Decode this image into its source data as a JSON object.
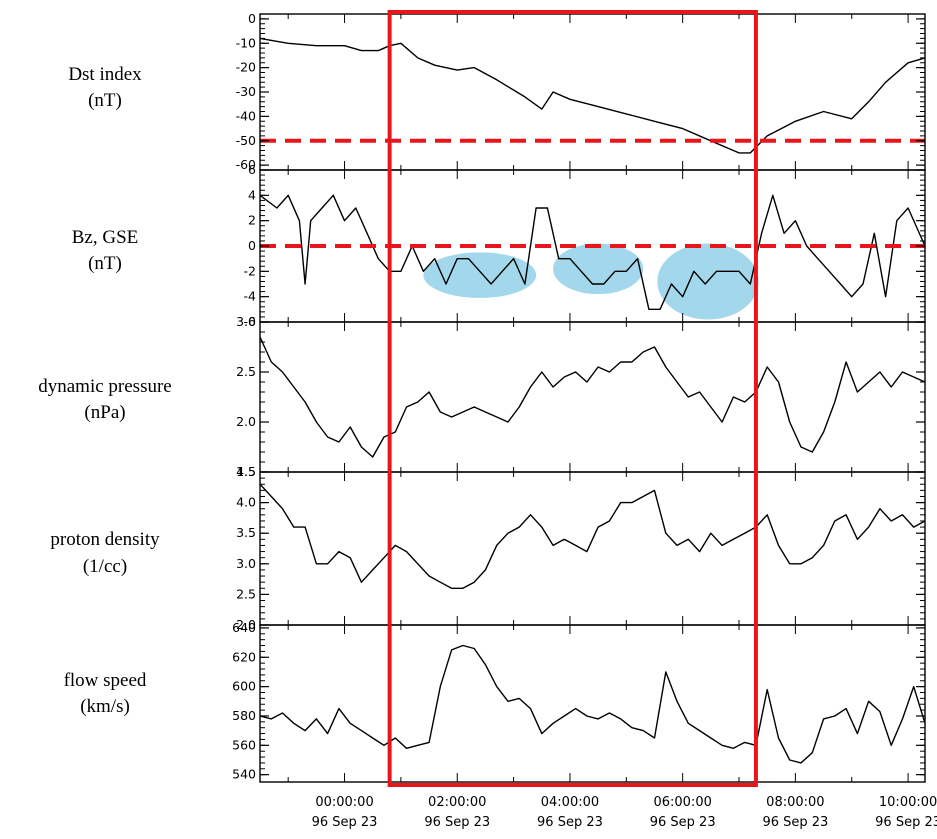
{
  "chart_data": {
    "type": "line",
    "x_ticks": [
      {
        "time": "00:00:00",
        "date": "96 Sep 23"
      },
      {
        "time": "02:00:00",
        "date": "96 Sep 23"
      },
      {
        "time": "04:00:00",
        "date": "96 Sep 23"
      },
      {
        "time": "06:00:00",
        "date": "96 Sep 23"
      },
      {
        "time": "08:00:00",
        "date": "96 Sep 23"
      },
      {
        "time": "10:00:00",
        "date": "96 Sep 23"
      }
    ],
    "xlim_hours": [
      -1.5,
      10.3
    ],
    "highlight_window_hours": [
      0.8,
      7.3
    ],
    "highlight_color": "#e8151b",
    "line_color": "#000000",
    "panels": [
      {
        "id": "dst",
        "label_line1": "Dst index",
        "label_line2": "(nT)",
        "ylim": [
          -62,
          2
        ],
        "ticks": [
          0,
          -10,
          -20,
          -30,
          -40,
          -50,
          -60
        ],
        "tick_labels": [
          "0",
          "-10",
          "-20",
          "-30",
          "-40",
          "-50",
          "-60"
        ],
        "threshold": -50,
        "series": {
          "x": [
            -1.5,
            -1.0,
            -0.5,
            0.0,
            0.3,
            0.6,
            0.8,
            1.0,
            1.3,
            1.6,
            2.0,
            2.3,
            2.7,
            3.2,
            3.5,
            3.7,
            4.0,
            4.5,
            5.0,
            5.5,
            6.0,
            6.5,
            6.8,
            7.0,
            7.2,
            7.5,
            8.0,
            8.5,
            9.0,
            9.3,
            9.6,
            10.0,
            10.3
          ],
          "y": [
            -8,
            -10,
            -11,
            -11,
            -13,
            -13,
            -11,
            -10,
            -16,
            -19,
            -21,
            -20,
            -25,
            -32,
            -37,
            -30,
            -33,
            -36,
            -39,
            -42,
            -45,
            -50,
            -53,
            -55,
            -55,
            -48,
            -42,
            -38,
            -41,
            -34,
            -26,
            -18,
            -16
          ]
        }
      },
      {
        "id": "bz",
        "label_line1": "Bz, GSE",
        "label_line2": "(nT)",
        "ylim": [
          -6,
          6
        ],
        "ticks": [
          6,
          4,
          2,
          0,
          -2,
          -4,
          -6
        ],
        "tick_labels": [
          "6",
          "4",
          "2",
          "0",
          "-2",
          "-4",
          "-6"
        ],
        "threshold": 0,
        "highlight_ellipses": [
          {
            "x_hours": 2.4,
            "y": -2.3,
            "rx_hours": 1.0,
            "ry": 1.8
          },
          {
            "x_hours": 4.5,
            "y": -1.8,
            "rx_hours": 0.8,
            "ry": 2.0
          },
          {
            "x_hours": 6.45,
            "y": -2.8,
            "rx_hours": 0.9,
            "ry": 3.0
          }
        ],
        "ellipse_color": "#a3d8ec",
        "series": {
          "x": [
            -1.5,
            -1.2,
            -1.0,
            -0.8,
            -0.7,
            -0.6,
            -0.4,
            -0.2,
            0.0,
            0.2,
            0.4,
            0.6,
            0.8,
            1.0,
            1.2,
            1.4,
            1.6,
            1.8,
            2.0,
            2.2,
            2.4,
            2.6,
            2.8,
            3.0,
            3.2,
            3.4,
            3.6,
            3.8,
            4.0,
            4.2,
            4.4,
            4.6,
            4.8,
            5.0,
            5.2,
            5.4,
            5.6,
            5.8,
            6.0,
            6.2,
            6.4,
            6.6,
            6.8,
            7.0,
            7.2,
            7.4,
            7.6,
            7.8,
            8.0,
            8.2,
            8.4,
            8.6,
            8.8,
            9.0,
            9.2,
            9.4,
            9.6,
            9.8,
            10.0,
            10.3
          ],
          "y": [
            4,
            3,
            4,
            2,
            -3,
            2,
            3,
            4,
            2,
            3,
            1,
            -1,
            -2,
            -2,
            0,
            -2,
            -1,
            -3,
            -1,
            -1,
            -2,
            -3,
            -2,
            -1,
            -3,
            3,
            3,
            -1,
            -1,
            -2,
            -3,
            -3,
            -2,
            -2,
            -1,
            -5,
            -5,
            -3,
            -4,
            -2,
            -3,
            -2,
            -2,
            -2,
            -3,
            1,
            4,
            1,
            2,
            0,
            -1,
            -2,
            -3,
            -4,
            -3,
            1,
            -4,
            2,
            3,
            0
          ]
        }
      },
      {
        "id": "pdyn",
        "label_line1": "dynamic pressure",
        "label_line2": "(nPa)",
        "ylim": [
          1.5,
          3.0
        ],
        "ticks": [
          3.0,
          2.5,
          2.0,
          1.5
        ],
        "tick_labels": [
          "3.0",
          "2.5",
          "2.0",
          "1.5"
        ],
        "series": {
          "x": [
            -1.5,
            -1.3,
            -1.1,
            -0.9,
            -0.7,
            -0.5,
            -0.3,
            -0.1,
            0.1,
            0.3,
            0.5,
            0.7,
            0.9,
            1.1,
            1.3,
            1.5,
            1.7,
            1.9,
            2.1,
            2.3,
            2.5,
            2.7,
            2.9,
            3.1,
            3.3,
            3.5,
            3.7,
            3.9,
            4.1,
            4.3,
            4.5,
            4.7,
            4.9,
            5.1,
            5.3,
            5.5,
            5.7,
            5.9,
            6.1,
            6.3,
            6.5,
            6.7,
            6.9,
            7.1,
            7.3,
            7.5,
            7.7,
            7.9,
            8.1,
            8.3,
            8.5,
            8.7,
            8.9,
            9.1,
            9.3,
            9.5,
            9.7,
            9.9,
            10.1,
            10.3
          ],
          "y": [
            2.85,
            2.6,
            2.5,
            2.35,
            2.2,
            2.0,
            1.85,
            1.8,
            1.95,
            1.75,
            1.65,
            1.85,
            1.9,
            2.15,
            2.2,
            2.3,
            2.1,
            2.05,
            2.1,
            2.15,
            2.1,
            2.05,
            2.0,
            2.15,
            2.35,
            2.5,
            2.35,
            2.45,
            2.5,
            2.4,
            2.55,
            2.5,
            2.6,
            2.6,
            2.7,
            2.75,
            2.55,
            2.4,
            2.25,
            2.3,
            2.15,
            2.0,
            2.25,
            2.2,
            2.3,
            2.55,
            2.4,
            2.0,
            1.75,
            1.7,
            1.9,
            2.2,
            2.6,
            2.3,
            2.4,
            2.5,
            2.35,
            2.5,
            2.45,
            2.4
          ]
        }
      },
      {
        "id": "density",
        "label_line1": "proton density",
        "label_line2": "(1/cc)",
        "ylim": [
          2.0,
          4.5
        ],
        "ticks": [
          4.5,
          4.0,
          3.5,
          3.0,
          2.5,
          2.0
        ],
        "tick_labels": [
          "4.5",
          "4.0",
          "3.5",
          "3.0",
          "2.5",
          "2.0"
        ],
        "series": {
          "x": [
            -1.5,
            -1.3,
            -1.1,
            -0.9,
            -0.7,
            -0.5,
            -0.3,
            -0.1,
            0.1,
            0.3,
            0.5,
            0.7,
            0.9,
            1.1,
            1.3,
            1.5,
            1.7,
            1.9,
            2.1,
            2.3,
            2.5,
            2.7,
            2.9,
            3.1,
            3.3,
            3.5,
            3.7,
            3.9,
            4.1,
            4.3,
            4.5,
            4.7,
            4.9,
            5.1,
            5.3,
            5.5,
            5.7,
            5.9,
            6.1,
            6.3,
            6.5,
            6.7,
            6.9,
            7.1,
            7.3,
            7.5,
            7.7,
            7.9,
            8.1,
            8.3,
            8.5,
            8.7,
            8.9,
            9.1,
            9.3,
            9.5,
            9.7,
            9.9,
            10.1,
            10.3
          ],
          "y": [
            4.3,
            4.1,
            3.9,
            3.6,
            3.6,
            3.0,
            3.0,
            3.2,
            3.1,
            2.7,
            2.9,
            3.1,
            3.3,
            3.2,
            3.0,
            2.8,
            2.7,
            2.6,
            2.6,
            2.7,
            2.9,
            3.3,
            3.5,
            3.6,
            3.8,
            3.6,
            3.3,
            3.4,
            3.3,
            3.2,
            3.6,
            3.7,
            4.0,
            4.0,
            4.1,
            4.2,
            3.5,
            3.3,
            3.4,
            3.2,
            3.5,
            3.3,
            3.4,
            3.5,
            3.6,
            3.8,
            3.3,
            3.0,
            3.0,
            3.1,
            3.3,
            3.7,
            3.8,
            3.4,
            3.6,
            3.9,
            3.7,
            3.8,
            3.6,
            3.7
          ]
        }
      },
      {
        "id": "speed",
        "label_line1": "flow speed",
        "label_line2": "(km/s)",
        "ylim": [
          535,
          642
        ],
        "ticks": [
          640,
          620,
          600,
          580,
          560,
          540
        ],
        "tick_labels": [
          "640",
          "620",
          "600",
          "580",
          "560",
          "540"
        ],
        "series": {
          "x": [
            -1.5,
            -1.3,
            -1.1,
            -0.9,
            -0.7,
            -0.5,
            -0.3,
            -0.1,
            0.1,
            0.3,
            0.5,
            0.7,
            0.9,
            1.1,
            1.3,
            1.5,
            1.7,
            1.9,
            2.1,
            2.3,
            2.5,
            2.7,
            2.9,
            3.1,
            3.3,
            3.5,
            3.7,
            3.9,
            4.1,
            4.3,
            4.5,
            4.7,
            4.9,
            5.1,
            5.3,
            5.5,
            5.7,
            5.9,
            6.1,
            6.3,
            6.5,
            6.7,
            6.9,
            7.1,
            7.3,
            7.5,
            7.7,
            7.9,
            8.1,
            8.3,
            8.5,
            8.7,
            8.9,
            9.1,
            9.3,
            9.5,
            9.7,
            9.9,
            10.1,
            10.3
          ],
          "y": [
            580,
            578,
            582,
            575,
            570,
            578,
            568,
            585,
            575,
            570,
            565,
            560,
            565,
            558,
            560,
            562,
            600,
            625,
            628,
            626,
            615,
            600,
            590,
            592,
            585,
            568,
            575,
            580,
            585,
            580,
            578,
            582,
            578,
            572,
            570,
            565,
            610,
            590,
            575,
            570,
            565,
            560,
            558,
            562,
            560,
            598,
            565,
            550,
            548,
            555,
            578,
            580,
            585,
            568,
            590,
            583,
            560,
            578,
            600,
            575
          ]
        }
      }
    ]
  }
}
